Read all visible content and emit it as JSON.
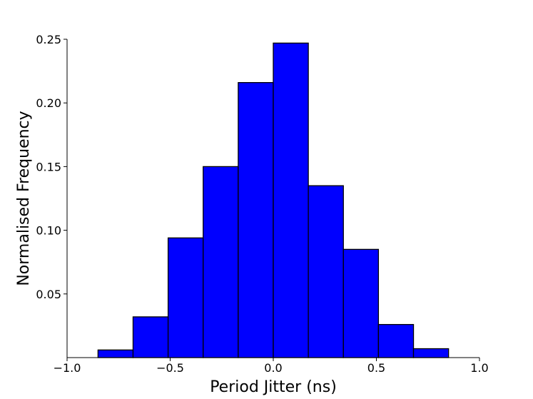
{
  "chart_data": {
    "type": "bar",
    "xlabel": "Period Jitter (ns)",
    "ylabel": "Normalised Frequency",
    "xlim": [
      -1.0,
      1.0
    ],
    "ylim": [
      0.0,
      0.25
    ],
    "x_ticks": [
      -1.0,
      -0.5,
      0.0,
      0.5,
      1.0
    ],
    "x_tick_labels": [
      "−1.0",
      "−0.5",
      "0.0",
      "0.5",
      "1.0"
    ],
    "y_ticks": [
      0.05,
      0.1,
      0.15,
      0.2,
      0.25
    ],
    "y_tick_labels": [
      "0.05",
      "0.10",
      "0.15",
      "0.20",
      "0.25"
    ],
    "bin_edges": [
      -0.85,
      -0.68,
      -0.51,
      -0.34,
      -0.17,
      0.0,
      0.17,
      0.34,
      0.51,
      0.68,
      0.85
    ],
    "values": [
      0.006,
      0.032,
      0.094,
      0.15,
      0.216,
      0.247,
      0.135,
      0.085,
      0.026,
      0.007
    ],
    "bar_color": "#0000ff",
    "edge_color": "#000000",
    "grid": false
  }
}
